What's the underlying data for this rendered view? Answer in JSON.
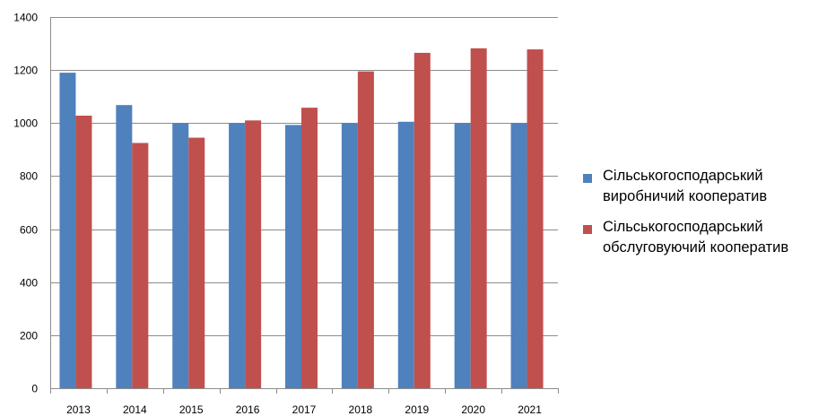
{
  "chart_data": {
    "type": "bar",
    "title": "",
    "xlabel": "",
    "ylabel": "",
    "categories": [
      "2013",
      "2014",
      "2015",
      "2016",
      "2017",
      "2018",
      "2019",
      "2020",
      "2021"
    ],
    "ylim": [
      0,
      1400
    ],
    "yticks": [
      "0",
      "200",
      "400",
      "600",
      "800",
      "1000",
      "1200",
      "1400"
    ],
    "grid": true,
    "legend_position": "right",
    "series": [
      {
        "name": "Сільськогосподарський\nвиробничий кооператив",
        "color": "#4f81bd",
        "values": [
          1190,
          1068,
          1000,
          1000,
          993,
          1000,
          1005,
          1000,
          1000
        ]
      },
      {
        "name": "Сільськогосподарський\nобслуговуючий кооператив",
        "color": "#c0504d",
        "values": [
          1028,
          925,
          945,
          1010,
          1058,
          1195,
          1265,
          1282,
          1278
        ]
      }
    ]
  }
}
